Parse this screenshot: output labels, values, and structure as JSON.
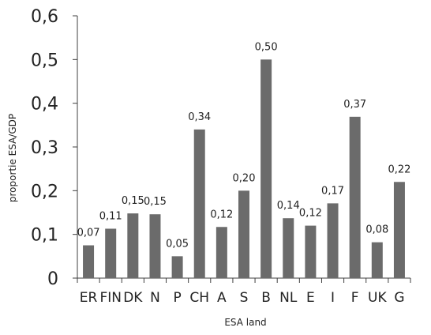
{
  "chart_data": {
    "type": "bar",
    "title": "",
    "xlabel": "ESA land",
    "ylabel": "proportie ESA/GDP",
    "categories": [
      "ER",
      "FIN",
      "DK",
      "N",
      "P",
      "CH",
      "A",
      "S",
      "B",
      "NL",
      "E",
      "I",
      "F",
      "UK",
      "G"
    ],
    "values": [
      0.075,
      0.113,
      0.148,
      0.146,
      0.05,
      0.34,
      0.117,
      0.2,
      0.5,
      0.137,
      0.12,
      0.171,
      0.369,
      0.082,
      0.22
    ],
    "value_labels": [
      "0,07",
      "0,11",
      "0,15",
      "0,15",
      "0,05",
      "0,34",
      "0,12",
      "0,20",
      "0,50",
      "0,14",
      "0,12",
      "0,17",
      "0,37",
      "0,08",
      "0,22"
    ],
    "ylim": [
      0,
      0.6
    ],
    "yticks": [
      0,
      0.1,
      0.2,
      0.3,
      0.4,
      0.5,
      0.6
    ],
    "ytick_labels": [
      "0",
      "0,1",
      "0,2",
      "0,3",
      "0,4",
      "0,5",
      "0,6"
    ],
    "grid": false,
    "legend": "none",
    "bar_color": "#6b6b6b",
    "axis_color": "#404040"
  }
}
